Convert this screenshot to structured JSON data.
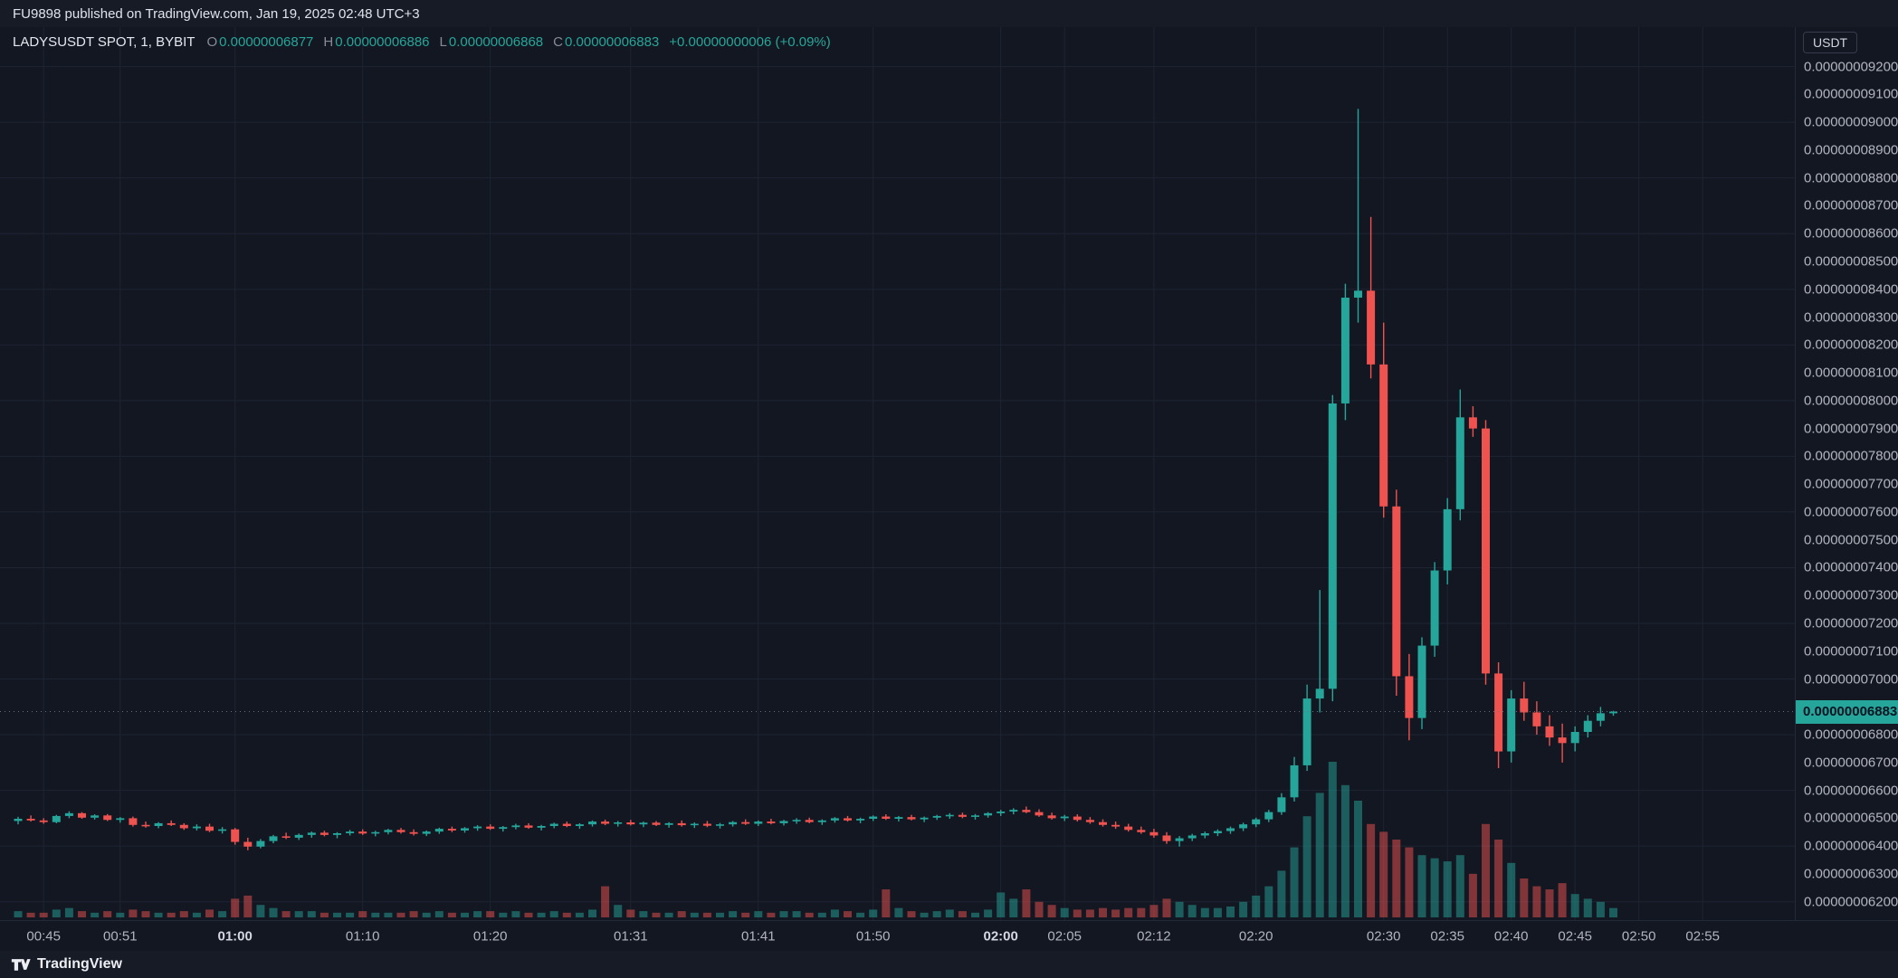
{
  "top_bar": {
    "text": "FU9898 published on TradingView.com, Jan 19, 2025 02:48 UTC+3"
  },
  "legend": {
    "symbol": "LADYSUSDT SPOT, 1, BYBIT",
    "o_label": "O",
    "o_value": "0.00000006877",
    "h_label": "H",
    "h_value": "0.00000006886",
    "l_label": "L",
    "l_value": "0.00000006868",
    "c_label": "C",
    "c_value": "0.00000006883",
    "change": "+0.00000000006 (+0.09%)"
  },
  "price_axis": {
    "currency": "USDT",
    "current_price_label": "0.00000006883",
    "labels": [
      "0.00000009200",
      "0.00000009100",
      "0.00000009000",
      "0.00000008900",
      "0.00000008800",
      "0.00000008700",
      "0.00000008600",
      "0.00000008500",
      "0.00000008400",
      "0.00000008300",
      "0.00000008200",
      "0.00000008100",
      "0.00000008000",
      "0.00000007900",
      "0.00000007800",
      "0.00000007700",
      "0.00000007600",
      "0.00000007500",
      "0.00000007400",
      "0.00000007300",
      "0.00000007200",
      "0.00000007100",
      "0.00000007000",
      "0.00000006800",
      "0.00000006700",
      "0.00000006600",
      "0.00000006500",
      "0.00000006400",
      "0.00000006300",
      "0.00000006200"
    ]
  },
  "time_axis": {
    "labels": [
      "00:45",
      "00:51",
      "01:00",
      "01:10",
      "01:20",
      "01:31",
      "01:41",
      "01:50",
      "02:00",
      "02:05",
      "02:12",
      "02:20",
      "02:30",
      "02:35",
      "02:40",
      "02:45",
      "02:50",
      "02:55"
    ]
  },
  "footer": {
    "brand": "TradingView"
  },
  "colors": {
    "bg": "#131722",
    "panel": "#171b26",
    "up": "#26a69a",
    "down": "#ef5350",
    "axis_text": "#b2b5be",
    "axis_border": "#242938",
    "grid": "#1e2433",
    "price_line": "#6a7686",
    "tag_text": "#0a1322",
    "text": "#d1d4dc",
    "muted": "#868b98"
  },
  "chart_data": {
    "type": "candlestick",
    "title": "LADYSUSDT SPOT, 1, BYBIT",
    "symbol": "LADYSUSDT",
    "market": "SPOT",
    "interval": "1",
    "exchange": "BYBIT",
    "quote_currency": "USDT",
    "last": {
      "open": "0.00000006877",
      "high": "0.00000006886",
      "low": "0.00000006868",
      "close": "0.00000006883",
      "change": "+0.00000000006",
      "change_pct": "+0.09%"
    },
    "current_price": 6883,
    "price_unit": 1e-11,
    "y_axis": {
      "min": 6150,
      "max": 9250,
      "tick_step": 100,
      "grid_step": 200
    },
    "x_axis": {
      "start": "00:43",
      "end": "02:56",
      "interval_minutes": 1
    },
    "bars_format": [
      "time",
      "open",
      "high",
      "low",
      "close",
      "volume_rel"
    ],
    "bars": [
      [
        "00:43",
        6490,
        6505,
        6478,
        6498,
        0.04
      ],
      [
        "00:44",
        6498,
        6510,
        6488,
        6492,
        0.03
      ],
      [
        "00:45",
        6492,
        6500,
        6480,
        6486,
        0.03
      ],
      [
        "00:46",
        6486,
        6512,
        6482,
        6508,
        0.05
      ],
      [
        "00:47",
        6508,
        6525,
        6500,
        6518,
        0.06
      ],
      [
        "00:48",
        6518,
        6522,
        6498,
        6502,
        0.04
      ],
      [
        "00:49",
        6502,
        6514,
        6495,
        6510,
        0.03
      ],
      [
        "00:50",
        6510,
        6515,
        6490,
        6494,
        0.04
      ],
      [
        "00:51",
        6494,
        6504,
        6484,
        6500,
        0.03
      ],
      [
        "00:52",
        6500,
        6506,
        6470,
        6476,
        0.05
      ],
      [
        "00:53",
        6476,
        6488,
        6466,
        6472,
        0.04
      ],
      [
        "00:54",
        6472,
        6486,
        6464,
        6482,
        0.03
      ],
      [
        "00:55",
        6482,
        6492,
        6472,
        6476,
        0.03
      ],
      [
        "00:56",
        6476,
        6482,
        6458,
        6464,
        0.04
      ],
      [
        "00:57",
        6464,
        6478,
        6456,
        6470,
        0.03
      ],
      [
        "00:58",
        6470,
        6480,
        6450,
        6455,
        0.05
      ],
      [
        "00:59",
        6455,
        6468,
        6445,
        6460,
        0.04
      ],
      [
        "01:00",
        6460,
        6465,
        6405,
        6415,
        0.12
      ],
      [
        "01:01",
        6415,
        6430,
        6385,
        6398,
        0.14
      ],
      [
        "01:02",
        6398,
        6425,
        6392,
        6418,
        0.08
      ],
      [
        "01:03",
        6418,
        6440,
        6410,
        6435,
        0.06
      ],
      [
        "01:04",
        6435,
        6448,
        6425,
        6430,
        0.04
      ],
      [
        "01:05",
        6430,
        6445,
        6422,
        6440,
        0.04
      ],
      [
        "01:06",
        6440,
        6452,
        6430,
        6448,
        0.04
      ],
      [
        "01:07",
        6448,
        6455,
        6435,
        6440,
        0.03
      ],
      [
        "01:08",
        6440,
        6450,
        6428,
        6446,
        0.03
      ],
      [
        "01:09",
        6446,
        6458,
        6438,
        6452,
        0.03
      ],
      [
        "01:10",
        6452,
        6460,
        6440,
        6445,
        0.04
      ],
      [
        "01:11",
        6445,
        6455,
        6435,
        6450,
        0.03
      ],
      [
        "01:12",
        6450,
        6462,
        6442,
        6458,
        0.03
      ],
      [
        "01:13",
        6458,
        6465,
        6445,
        6450,
        0.03
      ],
      [
        "01:14",
        6450,
        6460,
        6438,
        6444,
        0.04
      ],
      [
        "01:15",
        6444,
        6456,
        6436,
        6452,
        0.03
      ],
      [
        "01:16",
        6452,
        6466,
        6444,
        6462,
        0.04
      ],
      [
        "01:17",
        6462,
        6470,
        6450,
        6456,
        0.03
      ],
      [
        "01:18",
        6456,
        6468,
        6448,
        6464,
        0.03
      ],
      [
        "01:19",
        6464,
        6475,
        6455,
        6470,
        0.04
      ],
      [
        "01:20",
        6470,
        6478,
        6458,
        6462,
        0.04
      ],
      [
        "01:21",
        6462,
        6472,
        6452,
        6468,
        0.03
      ],
      [
        "01:22",
        6468,
        6480,
        6460,
        6474,
        0.04
      ],
      [
        "01:23",
        6474,
        6482,
        6462,
        6466,
        0.03
      ],
      [
        "01:24",
        6466,
        6476,
        6456,
        6472,
        0.03
      ],
      [
        "01:25",
        6472,
        6484,
        6464,
        6480,
        0.04
      ],
      [
        "01:26",
        6480,
        6488,
        6468,
        6472,
        0.03
      ],
      [
        "01:27",
        6472,
        6482,
        6462,
        6478,
        0.03
      ],
      [
        "01:28",
        6478,
        6492,
        6470,
        6488,
        0.05
      ],
      [
        "01:29",
        6488,
        6495,
        6475,
        6480,
        0.2
      ],
      [
        "01:30",
        6480,
        6490,
        6470,
        6485,
        0.08
      ],
      [
        "01:31",
        6485,
        6494,
        6474,
        6478,
        0.05
      ],
      [
        "01:32",
        6478,
        6488,
        6468,
        6484,
        0.04
      ],
      [
        "01:33",
        6484,
        6490,
        6472,
        6476,
        0.03
      ],
      [
        "01:34",
        6476,
        6486,
        6466,
        6482,
        0.03
      ],
      [
        "01:35",
        6482,
        6492,
        6470,
        6475,
        0.04
      ],
      [
        "01:36",
        6475,
        6485,
        6465,
        6480,
        0.03
      ],
      [
        "01:37",
        6480,
        6490,
        6468,
        6473,
        0.03
      ],
      [
        "01:38",
        6473,
        6483,
        6463,
        6478,
        0.03
      ],
      [
        "01:39",
        6478,
        6490,
        6470,
        6486,
        0.04
      ],
      [
        "01:40",
        6486,
        6496,
        6476,
        6480,
        0.03
      ],
      [
        "01:41",
        6480,
        6492,
        6472,
        6488,
        0.04
      ],
      [
        "01:42",
        6488,
        6498,
        6478,
        6482,
        0.03
      ],
      [
        "01:43",
        6482,
        6494,
        6474,
        6490,
        0.04
      ],
      [
        "01:44",
        6490,
        6500,
        6480,
        6494,
        0.04
      ],
      [
        "01:45",
        6494,
        6502,
        6482,
        6486,
        0.03
      ],
      [
        "01:46",
        6486,
        6496,
        6476,
        6492,
        0.03
      ],
      [
        "01:47",
        6492,
        6504,
        6484,
        6500,
        0.05
      ],
      [
        "01:48",
        6500,
        6508,
        6488,
        6492,
        0.04
      ],
      [
        "01:49",
        6492,
        6502,
        6482,
        6498,
        0.03
      ],
      [
        "01:50",
        6498,
        6510,
        6490,
        6506,
        0.05
      ],
      [
        "01:51",
        6506,
        6514,
        6494,
        6498,
        0.18
      ],
      [
        "01:52",
        6498,
        6508,
        6488,
        6504,
        0.06
      ],
      [
        "01:53",
        6504,
        6512,
        6492,
        6496,
        0.04
      ],
      [
        "01:54",
        6496,
        6506,
        6486,
        6502,
        0.03
      ],
      [
        "01:55",
        6502,
        6512,
        6494,
        6508,
        0.04
      ],
      [
        "01:56",
        6508,
        6518,
        6498,
        6512,
        0.05
      ],
      [
        "01:57",
        6512,
        6520,
        6500,
        6505,
        0.04
      ],
      [
        "01:58",
        6505,
        6515,
        6495,
        6510,
        0.03
      ],
      [
        "01:59",
        6510,
        6522,
        6502,
        6518,
        0.05
      ],
      [
        "02:00",
        6518,
        6530,
        6508,
        6524,
        0.16
      ],
      [
        "02:01",
        6524,
        6536,
        6514,
        6530,
        0.12
      ],
      [
        "02:02",
        6530,
        6542,
        6518,
        6522,
        0.18
      ],
      [
        "02:03",
        6522,
        6532,
        6505,
        6510,
        0.1
      ],
      [
        "02:04",
        6510,
        6520,
        6495,
        6500,
        0.08
      ],
      [
        "02:05",
        6500,
        6512,
        6490,
        6506,
        0.06
      ],
      [
        "02:06",
        6506,
        6514,
        6488,
        6494,
        0.05
      ],
      [
        "02:07",
        6494,
        6504,
        6480,
        6486,
        0.05
      ],
      [
        "02:08",
        6486,
        6496,
        6470,
        6476,
        0.06
      ],
      [
        "02:09",
        6476,
        6488,
        6462,
        6470,
        0.05
      ],
      [
        "02:10",
        6470,
        6480,
        6452,
        6458,
        0.06
      ],
      [
        "02:11",
        6458,
        6470,
        6444,
        6450,
        0.06
      ],
      [
        "02:12",
        6450,
        6462,
        6430,
        6438,
        0.08
      ],
      [
        "02:13",
        6438,
        6450,
        6408,
        6418,
        0.12
      ],
      [
        "02:14",
        6418,
        6436,
        6398,
        6428,
        0.1
      ],
      [
        "02:15",
        6428,
        6444,
        6418,
        6438,
        0.08
      ],
      [
        "02:16",
        6438,
        6452,
        6428,
        6446,
        0.06
      ],
      [
        "02:17",
        6446,
        6460,
        6436,
        6454,
        0.06
      ],
      [
        "02:18",
        6454,
        6470,
        6444,
        6464,
        0.07
      ],
      [
        "02:19",
        6464,
        6484,
        6454,
        6478,
        0.1
      ],
      [
        "02:20",
        6478,
        6502,
        6468,
        6496,
        0.14
      ],
      [
        "02:21",
        6496,
        6530,
        6486,
        6522,
        0.2
      ],
      [
        "02:22",
        6522,
        6590,
        6512,
        6575,
        0.3
      ],
      [
        "02:23",
        6575,
        6720,
        6560,
        6690,
        0.45
      ],
      [
        "02:24",
        6690,
        6980,
        6670,
        6930,
        0.65
      ],
      [
        "02:25",
        6930,
        7320,
        6880,
        6965,
        0.8
      ],
      [
        "02:26",
        6965,
        8020,
        6920,
        7990,
        1.0
      ],
      [
        "02:27",
        7990,
        8420,
        7930,
        8370,
        0.85
      ],
      [
        "02:28",
        8370,
        9048,
        8280,
        8395,
        0.75
      ],
      [
        "02:29",
        8395,
        8660,
        8080,
        8130,
        0.6
      ],
      [
        "02:30",
        8130,
        8280,
        7580,
        7620,
        0.55
      ],
      [
        "02:31",
        7620,
        7680,
        6940,
        7010,
        0.5
      ],
      [
        "02:32",
        7010,
        7090,
        6780,
        6860,
        0.45
      ],
      [
        "02:33",
        6860,
        7150,
        6820,
        7120,
        0.4
      ],
      [
        "02:34",
        7120,
        7420,
        7080,
        7390,
        0.38
      ],
      [
        "02:35",
        7390,
        7650,
        7340,
        7610,
        0.36
      ],
      [
        "02:36",
        7610,
        8040,
        7570,
        7940,
        0.4
      ],
      [
        "02:37",
        7940,
        7980,
        7870,
        7900,
        0.28
      ],
      [
        "02:38",
        7900,
        7930,
        6980,
        7020,
        0.6
      ],
      [
        "02:39",
        7020,
        7060,
        6680,
        6740,
        0.5
      ],
      [
        "02:40",
        6740,
        6960,
        6700,
        6930,
        0.35
      ],
      [
        "02:41",
        6930,
        6990,
        6850,
        6880,
        0.25
      ],
      [
        "02:42",
        6880,
        6920,
        6800,
        6830,
        0.2
      ],
      [
        "02:43",
        6830,
        6870,
        6760,
        6790,
        0.18
      ],
      [
        "02:44",
        6790,
        6840,
        6700,
        6770,
        0.22
      ],
      [
        "02:45",
        6770,
        6830,
        6740,
        6810,
        0.15
      ],
      [
        "02:46",
        6810,
        6870,
        6790,
        6850,
        0.12
      ],
      [
        "02:47",
        6850,
        6900,
        6830,
        6877,
        0.1
      ],
      [
        "02:48",
        6877,
        6886,
        6868,
        6883,
        0.06
      ]
    ]
  }
}
